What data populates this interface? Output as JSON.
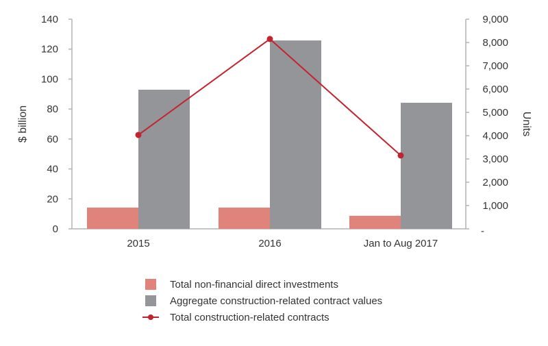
{
  "chart_data": {
    "type": "bar",
    "title": "",
    "categories": [
      "2015",
      "2016",
      "Jan to Aug 2017"
    ],
    "series": [
      {
        "name": "Total non-financial direct investments",
        "type": "bar",
        "axis": "left",
        "color": "#e0837a",
        "values": [
          14.2,
          14.2,
          8.7
        ]
      },
      {
        "name": "Aggregate construction-related contract values",
        "type": "bar",
        "axis": "left",
        "color": "#939598",
        "values": [
          92.9,
          125.8,
          84.2
        ]
      },
      {
        "name": "Total construction-related contracts",
        "type": "line",
        "axis": "right",
        "color": "#c4232d",
        "values": [
          4030,
          8150,
          3150
        ]
      }
    ],
    "ylabel": "$ billion",
    "ylim": [
      0,
      140
    ],
    "yticks": [
      "0",
      "20",
      "40",
      "60",
      "80",
      "100",
      "120",
      "140"
    ],
    "y2label": "Units",
    "y2lim": [
      0,
      9000
    ],
    "y2ticks": [
      "-",
      "1,000",
      "2,000",
      "3,000",
      "4,000",
      "5,000",
      "6,000",
      "7,000",
      "8,000",
      "9,000"
    ],
    "legend_position": "bottom",
    "grid": false
  }
}
